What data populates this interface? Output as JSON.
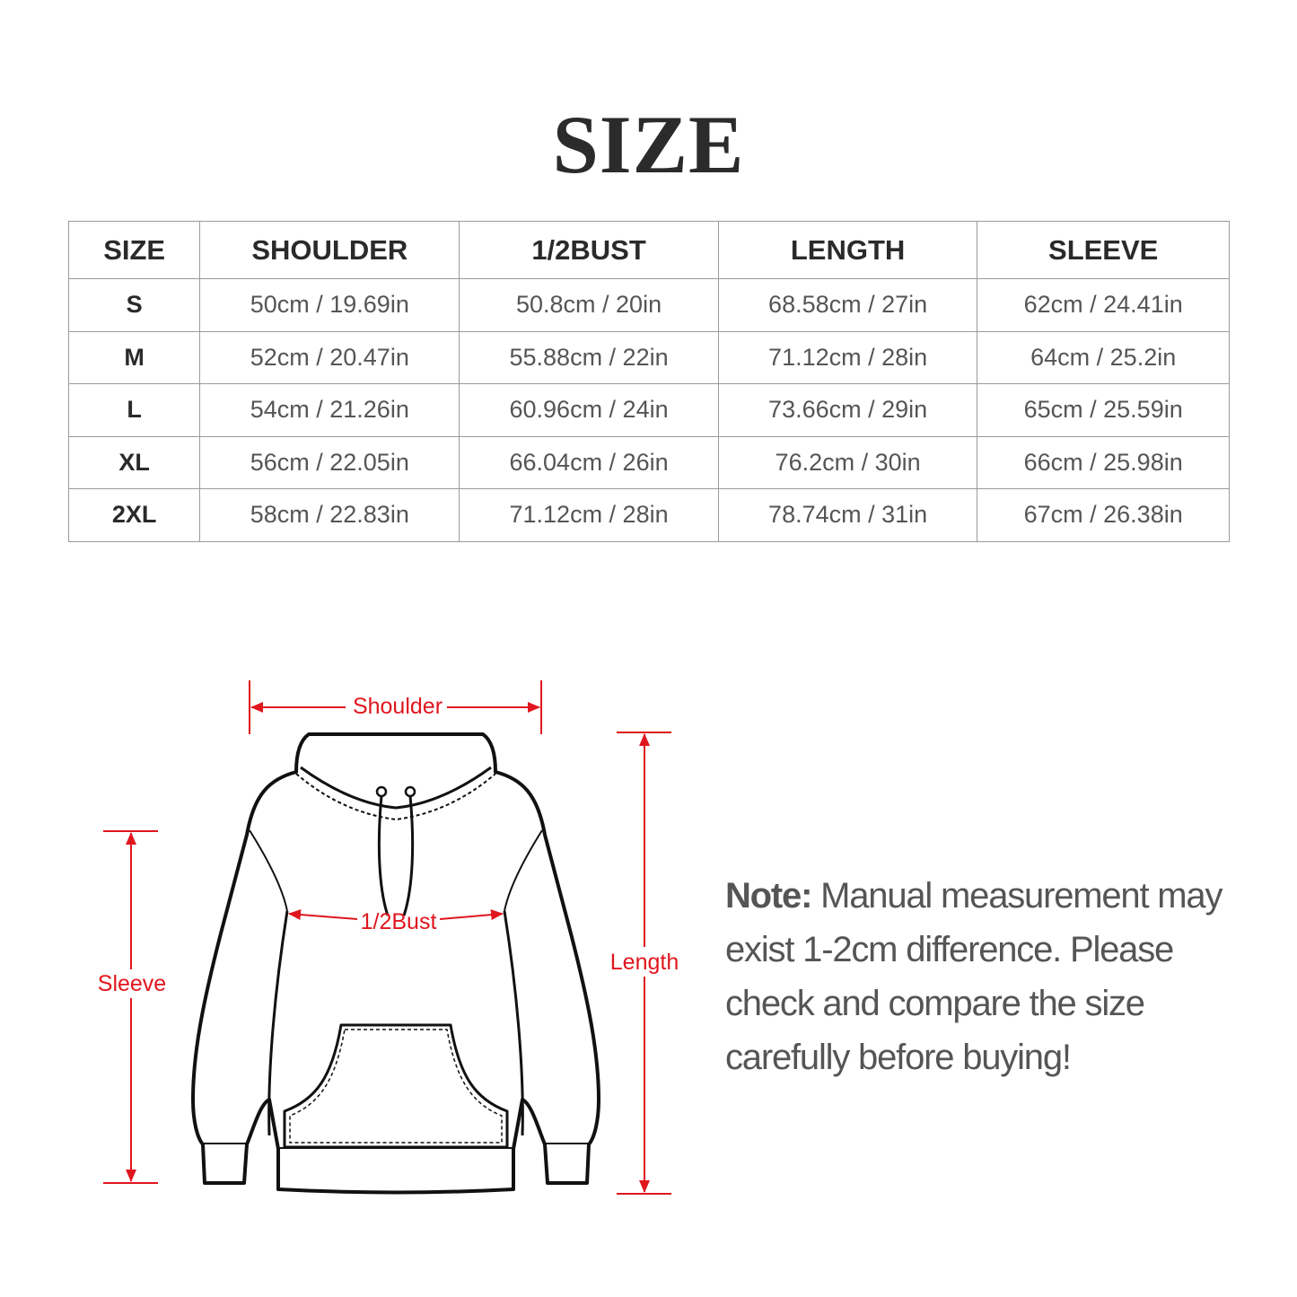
{
  "title": "SIZE",
  "table": {
    "headers": [
      "SIZE",
      "SHOULDER",
      "1/2BUST",
      "LENGTH",
      "SLEEVE"
    ],
    "rows": [
      [
        "S",
        "50cm / 19.69in",
        "50.8cm / 20in",
        "68.58cm / 27in",
        "62cm / 24.41in"
      ],
      [
        "M",
        "52cm / 20.47in",
        "55.88cm / 22in",
        "71.12cm / 28in",
        "64cm / 25.2in"
      ],
      [
        "L",
        "54cm / 21.26in",
        "60.96cm / 24in",
        "73.66cm / 29in",
        "65cm / 25.59in"
      ],
      [
        "XL",
        "56cm / 22.05in",
        "66.04cm / 26in",
        "76.2cm / 30in",
        "66cm / 25.98in"
      ],
      [
        "2XL",
        "58cm / 22.83in",
        "71.12cm / 28in",
        "78.74cm / 31in",
        "67cm / 26.38in"
      ]
    ]
  },
  "diagram": {
    "labels": {
      "shoulder": "Shoulder",
      "bust": "1/2Bust",
      "sleeve": "Sleeve",
      "length": "Length"
    },
    "accent_color": "#e0161e"
  },
  "note": {
    "label": "Note:",
    "text": " Manual measurement may exist 1-2cm difference. Please check and compare the size carefully before buying!"
  }
}
